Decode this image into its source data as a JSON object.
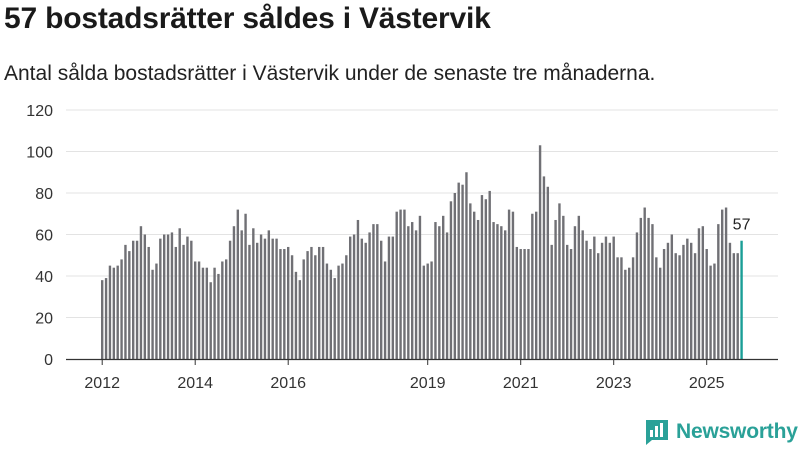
{
  "header": {
    "title": "57 bostadsrätter såldes i Västervik",
    "subtitle": "Antal sålda bostadsrätter i Västervik under de senaste tre månaderna."
  },
  "brand": {
    "name": "Newsworthy",
    "color": "#2aa198"
  },
  "colors": {
    "bar": "#707075",
    "highlight": "#1a9e96",
    "grid": "#e3e3e3",
    "axis": "#333333"
  },
  "chart_data": {
    "type": "bar",
    "title": "57 bostadsrätter såldes i Västervik",
    "xlabel": "",
    "ylabel": "",
    "ylim": [
      0,
      120
    ],
    "yticks": [
      "0",
      "20",
      "40",
      "60",
      "80",
      "100",
      "120"
    ],
    "x_tick_labels": [
      {
        "label": "2012",
        "index": 0
      },
      {
        "label": "2014",
        "index": 24
      },
      {
        "label": "2016",
        "index": 48
      },
      {
        "label": "2019",
        "index": 84
      },
      {
        "label": "2021",
        "index": 108
      },
      {
        "label": "2023",
        "index": 132
      },
      {
        "label": "2025",
        "index": 156
      }
    ],
    "start": "2012-01",
    "annotation": {
      "label": "57",
      "index": 165
    },
    "highlight_index": 165,
    "values": [
      38,
      39,
      45,
      44,
      45,
      48,
      55,
      52,
      57,
      57,
      64,
      60,
      54,
      43,
      46,
      58,
      60,
      60,
      61,
      54,
      63,
      55,
      59,
      57,
      47,
      47,
      44,
      44,
      37,
      44,
      41,
      47,
      48,
      57,
      64,
      72,
      62,
      70,
      55,
      63,
      56,
      60,
      58,
      62,
      58,
      58,
      53,
      53,
      54,
      50,
      42,
      38,
      48,
      52,
      54,
      50,
      54,
      54,
      46,
      43,
      39,
      45,
      46,
      50,
      59,
      60,
      67,
      58,
      56,
      61,
      65,
      65,
      57,
      47,
      59,
      59,
      71,
      72,
      72,
      64,
      66,
      62,
      69,
      45,
      46,
      47,
      66,
      64,
      69,
      61,
      76,
      80,
      85,
      84,
      90,
      75,
      71,
      67,
      79,
      77,
      81,
      66,
      65,
      64,
      62,
      72,
      71,
      54,
      53,
      53,
      53,
      70,
      71,
      103,
      88,
      83,
      55,
      67,
      75,
      69,
      55,
      53,
      64,
      69,
      62,
      57,
      53,
      59,
      51,
      56,
      59,
      56,
      59,
      49,
      49,
      43,
      44,
      49,
      61,
      68,
      73,
      68,
      65,
      49,
      44,
      53,
      56,
      60,
      51,
      50,
      55,
      58,
      56,
      51,
      63,
      64,
      53,
      45,
      46,
      65,
      72,
      73,
      56,
      51,
      51,
      57
    ]
  }
}
